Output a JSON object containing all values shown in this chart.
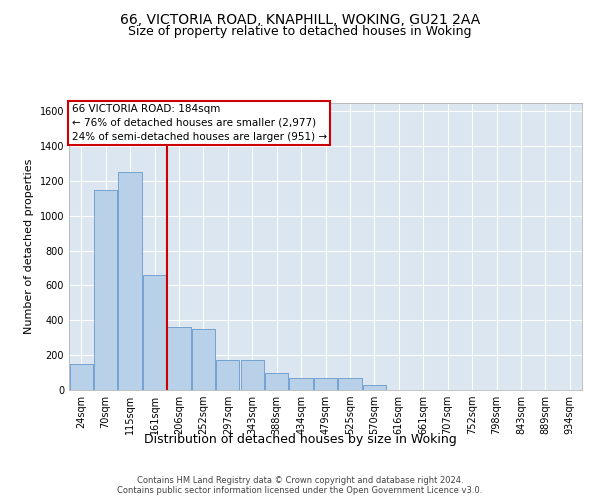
{
  "title1": "66, VICTORIA ROAD, KNAPHILL, WOKING, GU21 2AA",
  "title2": "Size of property relative to detached houses in Woking",
  "xlabel": "Distribution of detached houses by size in Woking",
  "ylabel": "Number of detached properties",
  "categories": [
    "24sqm",
    "70sqm",
    "115sqm",
    "161sqm",
    "206sqm",
    "252sqm",
    "297sqm",
    "343sqm",
    "388sqm",
    "434sqm",
    "479sqm",
    "525sqm",
    "570sqm",
    "616sqm",
    "661sqm",
    "707sqm",
    "752sqm",
    "798sqm",
    "843sqm",
    "889sqm",
    "934sqm"
  ],
  "values": [
    150,
    1150,
    1250,
    660,
    360,
    350,
    170,
    170,
    100,
    70,
    70,
    70,
    30,
    0,
    0,
    0,
    0,
    0,
    0,
    0,
    0
  ],
  "bar_color": "#b8d0e8",
  "bar_edge_color": "#6699cc",
  "vline_color": "#cc0000",
  "annotation_box_text": "66 VICTORIA ROAD: 184sqm\n← 76% of detached houses are smaller (2,977)\n24% of semi-detached houses are larger (951) →",
  "annotation_box_color": "#cc0000",
  "annotation_bg": "white",
  "ylim": [
    0,
    1650
  ],
  "yticks": [
    0,
    200,
    400,
    600,
    800,
    1000,
    1200,
    1400,
    1600
  ],
  "footnote": "Contains HM Land Registry data © Crown copyright and database right 2024.\nContains public sector information licensed under the Open Government Licence v3.0.",
  "plot_bg_color": "#dce6f0",
  "grid_color": "white",
  "title1_fontsize": 10,
  "title2_fontsize": 9,
  "xlabel_fontsize": 9,
  "ylabel_fontsize": 8,
  "tick_fontsize": 7,
  "annotation_fontsize": 7.5
}
